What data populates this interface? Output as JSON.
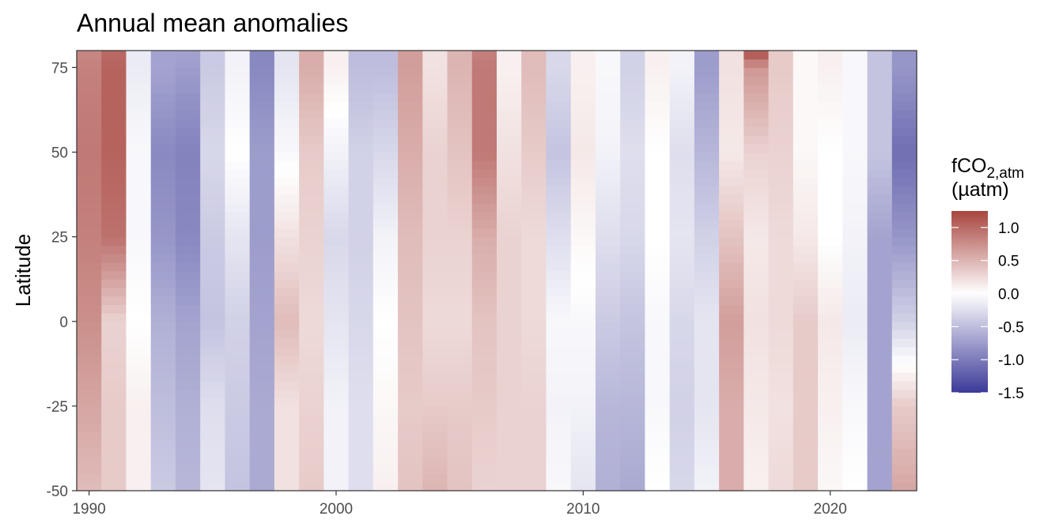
{
  "chart_data": {
    "type": "heatmap",
    "title": "Annual mean anomalies",
    "xlabel": "",
    "ylabel": "Latitude",
    "x": [
      1990,
      1991,
      1992,
      1993,
      1994,
      1995,
      1996,
      1997,
      1998,
      1999,
      2000,
      2001,
      2002,
      2003,
      2004,
      2005,
      2006,
      2007,
      2008,
      2009,
      2010,
      2011,
      2012,
      2013,
      2014,
      2015,
      2016,
      2017,
      2018,
      2019,
      2020,
      2021,
      2022,
      2023
    ],
    "xlim": [
      1989.5,
      2023.5
    ],
    "x_ticks": [
      1990,
      2000,
      2010,
      2020
    ],
    "y_ticks": [
      -50,
      -25,
      0,
      25,
      50,
      75
    ],
    "ylim": [
      -50,
      80
    ],
    "lat_anchors": [
      -50,
      -25,
      0,
      25,
      50,
      75,
      80
    ],
    "values": [
      [
        0.45,
        0.6,
        0.75,
        0.85,
        0.9,
        0.85,
        0.8
      ],
      [
        0.35,
        0.35,
        0.3,
        0.95,
        1.05,
        1.05,
        1.0
      ],
      [
        0.1,
        0.1,
        0.0,
        -0.05,
        -0.05,
        -0.15,
        -0.15
      ],
      [
        -0.4,
        -0.5,
        -0.6,
        -0.8,
        -0.9,
        -0.7,
        -0.7
      ],
      [
        -0.55,
        -0.6,
        -0.7,
        -0.9,
        -0.95,
        -0.75,
        -0.7
      ],
      [
        -0.2,
        -0.25,
        -0.45,
        -0.4,
        -0.3,
        -0.4,
        -0.4
      ],
      [
        -0.45,
        -0.4,
        -0.35,
        -0.2,
        0.0,
        -0.1,
        -0.1
      ],
      [
        -0.65,
        -0.65,
        -0.7,
        -0.75,
        -0.75,
        -0.9,
        -0.9
      ],
      [
        0.2,
        0.2,
        0.45,
        0.2,
        -0.05,
        -0.2,
        -0.2
      ],
      [
        0.35,
        0.3,
        0.25,
        0.3,
        0.35,
        0.55,
        0.55
      ],
      [
        -0.1,
        -0.1,
        -0.2,
        -0.3,
        -0.1,
        0.1,
        0.1
      ],
      [
        -0.25,
        -0.25,
        -0.3,
        -0.35,
        -0.35,
        -0.5,
        -0.5
      ],
      [
        0.1,
        0.05,
        0.0,
        -0.1,
        -0.3,
        -0.5,
        -0.5
      ],
      [
        0.4,
        0.35,
        0.4,
        0.45,
        0.55,
        0.65,
        0.65
      ],
      [
        0.5,
        0.35,
        0.25,
        0.3,
        0.3,
        0.2,
        0.2
      ],
      [
        0.4,
        0.35,
        0.25,
        0.3,
        0.4,
        0.5,
        0.5
      ],
      [
        0.3,
        0.35,
        0.4,
        0.55,
        0.9,
        0.9,
        0.85
      ],
      [
        0.3,
        0.3,
        0.3,
        0.3,
        0.2,
        0.1,
        0.1
      ],
      [
        0.3,
        0.3,
        0.25,
        0.25,
        0.35,
        0.45,
        0.45
      ],
      [
        -0.05,
        -0.1,
        -0.05,
        -0.25,
        -0.45,
        -0.3,
        -0.3
      ],
      [
        -0.2,
        -0.1,
        -0.05,
        0.05,
        0.15,
        0.1,
        0.1
      ],
      [
        -0.6,
        -0.55,
        -0.4,
        -0.25,
        -0.1,
        -0.05,
        -0.05
      ],
      [
        -0.65,
        -0.55,
        -0.45,
        -0.3,
        -0.25,
        -0.35,
        -0.35
      ],
      [
        0.0,
        -0.05,
        -0.05,
        0.0,
        0.0,
        0.1,
        0.1
      ],
      [
        -0.3,
        -0.35,
        -0.3,
        -0.2,
        -0.25,
        -0.1,
        -0.1
      ],
      [
        -0.1,
        -0.2,
        -0.2,
        -0.35,
        -0.55,
        -0.75,
        -0.75
      ],
      [
        0.55,
        0.55,
        0.65,
        0.4,
        0.15,
        0.2,
        0.2
      ],
      [
        0.1,
        0.15,
        0.2,
        0.15,
        0.3,
        0.7,
        1.2
      ],
      [
        0.25,
        0.2,
        0.25,
        0.25,
        0.3,
        0.35,
        0.35
      ],
      [
        0.35,
        0.35,
        0.35,
        0.15,
        0.05,
        0.05,
        0.05
      ],
      [
        0.05,
        0.1,
        0.15,
        0.0,
        0.0,
        0.1,
        0.1
      ],
      [
        0.0,
        -0.05,
        -0.15,
        -0.1,
        -0.05,
        -0.05,
        -0.05
      ],
      [
        -0.7,
        -0.7,
        -0.7,
        -0.7,
        -0.45,
        -0.45,
        -0.45
      ],
      [
        0.6,
        0.35,
        -0.35,
        -0.8,
        -1.1,
        -0.8,
        -0.8
      ]
    ],
    "legend": {
      "title_main": "fCO",
      "title_sub": "2,atm",
      "title_unit": "(µatm)",
      "range": [
        -1.5,
        1.25
      ],
      "ticks": [
        1.0,
        0.5,
        0.0,
        -0.5,
        -1.0,
        -1.5
      ],
      "tick_labels": [
        "1.0",
        "0.5",
        "0.0",
        "-0.5",
        "-1.0",
        "-1.5"
      ],
      "colors": {
        "low": "#3b3a98",
        "mid": "#ffffff",
        "high": "#a8453f"
      },
      "placement": "right"
    }
  }
}
